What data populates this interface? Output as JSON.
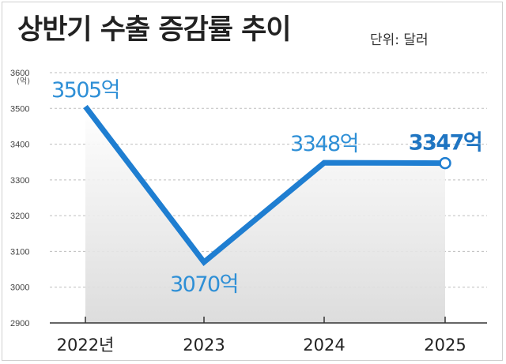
{
  "title": "상반기 수출 증감률 추이",
  "unit_note": "단위: 달러",
  "chart_data": {
    "type": "line",
    "title": "상반기 수출 증감률 추이",
    "unit": "단위: 달러",
    "y_axis_unit": "(억)",
    "categories": [
      "2022년",
      "2023",
      "2024",
      "2025"
    ],
    "series": [
      {
        "values": [
          3505,
          3070,
          3348,
          3347
        ],
        "data_labels": [
          "3505억",
          "3070억",
          "3348억",
          "3347억"
        ]
      }
    ],
    "ylim": [
      2900,
      3600
    ],
    "y_ticks": [
      3600,
      3500,
      3400,
      3300,
      3200,
      3100,
      3000,
      2900
    ],
    "grid": true,
    "line_color": "#1f7ed1",
    "area_fill": "#d9d9d9",
    "grid_color": "#bdbdbd",
    "last_point_marker": "hollow-circle"
  }
}
